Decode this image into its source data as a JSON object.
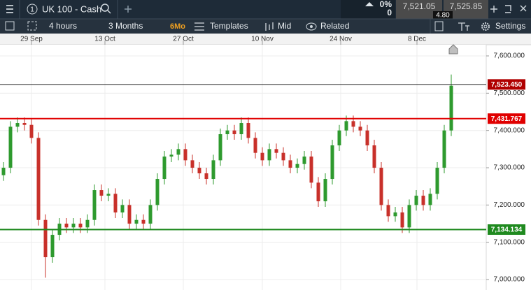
{
  "toolbar": {
    "instrument_number": "1",
    "instrument": "UK 100 - Cash",
    "change_percent": "0%",
    "change": "0",
    "sell": "7,521.05",
    "spread": "4.80",
    "buy": "7,525.85"
  },
  "chart_toolbar": {
    "interval": "4 hours",
    "range": "3 Months",
    "range_badge": "6Mo",
    "templates": "Templates",
    "price_mode": "Mid",
    "related": "Related",
    "settings": "Settings"
  },
  "chart_data": {
    "type": "candlestick",
    "up_color": "#2e9a2e",
    "down_color": "#c8302a",
    "grid": true,
    "xlim": [
      -0.5,
      69
    ],
    "xticks": [
      {
        "value": 4,
        "label": "29 Sep"
      },
      {
        "value": 14.5,
        "label": "13 Oct"
      },
      {
        "value": 25.7,
        "label": "27 Oct"
      },
      {
        "value": 37,
        "label": "10 Nov"
      },
      {
        "value": 48.2,
        "label": "24 Nov"
      },
      {
        "value": 59.1,
        "label": "8 Dec"
      }
    ],
    "ylim": [
      6972,
      7630
    ],
    "yticks": [
      {
        "value": 7600,
        "label": "7,600.000"
      },
      {
        "value": 7500,
        "label": "7,500.000"
      },
      {
        "value": 7400,
        "label": "7,400.000"
      },
      {
        "value": 7300,
        "label": "7,300.000"
      },
      {
        "value": 7200,
        "label": "7,200.000"
      },
      {
        "value": 7100,
        "label": "7,100.000"
      },
      {
        "value": 7000,
        "label": "7,000.000"
      }
    ],
    "open": [
      7280,
      7300,
      7410,
      7420,
      7415,
      7380,
      7160,
      7060,
      7120,
      7150,
      7140,
      7150,
      7140,
      7160,
      7240,
      7225,
      7230,
      7180,
      7200,
      7150,
      7160,
      7150,
      7200,
      7270,
      7330,
      7335,
      7350,
      7320,
      7300,
      7285,
      7270,
      7320,
      7390,
      7400,
      7390,
      7420,
      7380,
      7340,
      7320,
      7350,
      7340,
      7320,
      7300,
      7310,
      7330,
      7260,
      7210,
      7270,
      7360,
      7400,
      7425,
      7410,
      7400,
      7360,
      7300,
      7200,
      7170,
      7180,
      7140,
      7200,
      7225,
      7200,
      7230,
      7300,
      7400
    ],
    "high": [
      7315,
      7425,
      7435,
      7435,
      7430,
      7395,
      7175,
      7135,
      7165,
      7165,
      7165,
      7165,
      7175,
      7255,
      7255,
      7245,
      7245,
      7215,
      7215,
      7175,
      7175,
      7215,
      7285,
      7345,
      7350,
      7365,
      7365,
      7335,
      7315,
      7300,
      7335,
      7405,
      7415,
      7415,
      7435,
      7435,
      7395,
      7355,
      7365,
      7365,
      7355,
      7335,
      7325,
      7345,
      7345,
      7275,
      7285,
      7375,
      7415,
      7440,
      7440,
      7425,
      7415,
      7375,
      7315,
      7215,
      7195,
      7195,
      7215,
      7240,
      7240,
      7245,
      7315,
      7415,
      7550
    ],
    "low": [
      7265,
      7285,
      7395,
      7400,
      7365,
      7145,
      7005,
      7045,
      7105,
      7125,
      7125,
      7125,
      7125,
      7145,
      7210,
      7210,
      7165,
      7165,
      7135,
      7135,
      7135,
      7135,
      7185,
      7255,
      7315,
      7320,
      7305,
      7285,
      7270,
      7255,
      7255,
      7305,
      7375,
      7375,
      7375,
      7365,
      7325,
      7305,
      7305,
      7325,
      7305,
      7285,
      7285,
      7295,
      7245,
      7195,
      7195,
      7255,
      7345,
      7385,
      7395,
      7385,
      7345,
      7285,
      7185,
      7155,
      7155,
      7125,
      7125,
      7185,
      7185,
      7185,
      7215,
      7285,
      7385
    ],
    "close": [
      7300,
      7410,
      7420,
      7415,
      7380,
      7160,
      7060,
      7120,
      7150,
      7140,
      7150,
      7140,
      7160,
      7240,
      7225,
      7230,
      7180,
      7200,
      7150,
      7160,
      7150,
      7200,
      7270,
      7330,
      7335,
      7350,
      7320,
      7300,
      7285,
      7270,
      7320,
      7390,
      7400,
      7390,
      7420,
      7380,
      7340,
      7320,
      7350,
      7340,
      7320,
      7300,
      7310,
      7330,
      7260,
      7210,
      7270,
      7360,
      7400,
      7425,
      7410,
      7400,
      7360,
      7300,
      7200,
      7170,
      7180,
      7140,
      7200,
      7225,
      7200,
      7230,
      7300,
      7400,
      7520
    ],
    "price_lines": [
      {
        "value": 7523.45,
        "label": "7,523.450",
        "line_color": "#222222",
        "label_color": "#b00000"
      },
      {
        "value": 7431.767,
        "label": "7,431.767",
        "line_color": "#e00000",
        "label_color": "#e00000"
      },
      {
        "value": 7134.134,
        "label": "7,134.134",
        "line_color": "#1f8a1f",
        "label_color": "#1f8a1f"
      }
    ]
  }
}
